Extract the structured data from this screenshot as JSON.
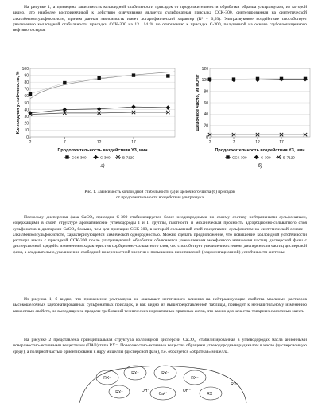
{
  "text": {
    "p1": "На рисунке 1, а приведена зависимость коллоидной стабильности присадок от продолжительности обработки образца ультразвуком, из которой видно, что наиболее восприимчивой к действию озвучивания является сульфонатная присадка ССК-300, синтезированная на синтетической алкилбензолсульфокислоте, причем данная зависимость имеет логарифмический характер (R² = 0,93). Ультразвуковое воздействие способствует увеличению коллоидной стабильности присадки ССК-300 на 13…14 % по отношению к присадке С-300, полученной на основе глубокоочищенного нефтяного сырья.",
    "p2": "Поскольку дисперсная фаза CaCO₃ присадки С-300 стабилизируется более неоднородными по своему составу нейтральными сульфонатами, содержащими в своей структуре ароматические углеводороды I и II группы, плотность и механическая прочность адсорбционно-сольватного слоя сульфонатов в дисперсии CaCO₃ больше, чем для присадки ССК-300, в которой сольватный слой представлен сульфонатом на синтетической основе – алкилбензолсульфокислоте, характеризующейся химической однородностью. Можно сделать предположение, что повышение коллоидной устойчивости раствора масла с присадкой ССК-300 после ультразвуковой обработки объясняется уменьшением межфазного натяжения частиц дисперсной фазы с дисперсионной средой с изменением характеристик сорбционно-сольватного слоя, что способствует увеличению степени дисперсности частиц дисперсной фазы, а следовательно, увеличению свободной поверхностной энергии и повышению кинетической (седиментационной) устойчивости системы.",
    "p3": "Из рисунка 1, б видно, что применение ультразвука не оказывает негативного влияния на нейтрализующие свойства масляных растворов высокощелочных карбонатированных сульфонатных присадок, и как видно из вышепредставленной таблицы, приводит к незначительному изменению вязкостных свойств, не выходящих за пределы требований технических нормативных правовых актов, что важно для качества товарных смазочных масел.",
    "p4": "На рисунке 2 представлена принципиальная структура коллоидной дисперсии CaCO₃, стабилизированная в углеводородах масла анионными поверхностно-активными веществами (ПАВ) типа RX⁻. Поверхностно-активные вещества обращены углеводородным радикалом в масло (дисперсионную среду), а полярной частью ориентированы к ядру мицеллы (дисперсной фазе), т.е. образуется «обратная» мицелла.",
    "caption_line1": "Рис. 1. Зависимость коллоидной стабильности (а) и щелочного числа (б) присадок",
    "caption_line2": "от продолжительности воздействия ультразвука"
  },
  "colors": {
    "text": "#111111",
    "grid": "#d8d8d8",
    "axis": "#333333"
  },
  "scheme": {
    "labels": [
      "RX⁻",
      "RX⁻",
      "RX⁻",
      "RX⁻",
      "RX⁻",
      "OH⁻",
      "Ca²⁺",
      "OH⁻",
      "RX⁻",
      "RX⁻"
    ]
  },
  "chart_data": [
    {
      "type": "line",
      "panel": "а)",
      "ylabel": "Коллоидная устойчивость, %",
      "xlabel": "Продолжительность воздействия УЗ, мин",
      "x": [
        2,
        7,
        12,
        17,
        22
      ],
      "xticks": [
        2,
        7,
        12,
        17
      ],
      "ylim": [
        0,
        100
      ],
      "yticks": [
        0,
        10,
        20,
        30,
        40,
        50,
        60,
        70,
        80,
        90,
        100
      ],
      "grid": true,
      "legend_position": "bottom",
      "series": [
        {
          "name": "ССК-300",
          "marker": "square",
          "values": [
            63,
            79,
            86,
            90,
            89
          ]
        },
        {
          "name": "С-300",
          "marker": "diamond",
          "values": [
            35,
            40,
            41,
            44,
            43
          ]
        },
        {
          "name": "В-7120",
          "marker": "x",
          "values": [
            33,
            35,
            35,
            36,
            36
          ]
        }
      ]
    },
    {
      "type": "line",
      "panel": "б)",
      "ylabel": "Щелочное число, мг КОН/г",
      "xlabel": "Продолжительность воздействия УЗ, мин",
      "x": [
        2,
        7,
        12,
        17,
        22
      ],
      "xticks": [
        2,
        7,
        12,
        17
      ],
      "ylim": [
        0,
        120
      ],
      "yticks": [
        0,
        20,
        40,
        60,
        80,
        100,
        120
      ],
      "grid": true,
      "legend_position": "bottom",
      "series": [
        {
          "name": "ССК-300",
          "marker": "square",
          "values": [
            101,
            101,
            102,
            102,
            102
          ]
        },
        {
          "name": "С-300",
          "marker": "diamond",
          "values": [
            100,
            100,
            100,
            101,
            101
          ]
        },
        {
          "name": "В-7120",
          "marker": "x",
          "values": [
            4,
            4,
            4,
            4,
            4
          ]
        }
      ]
    }
  ]
}
